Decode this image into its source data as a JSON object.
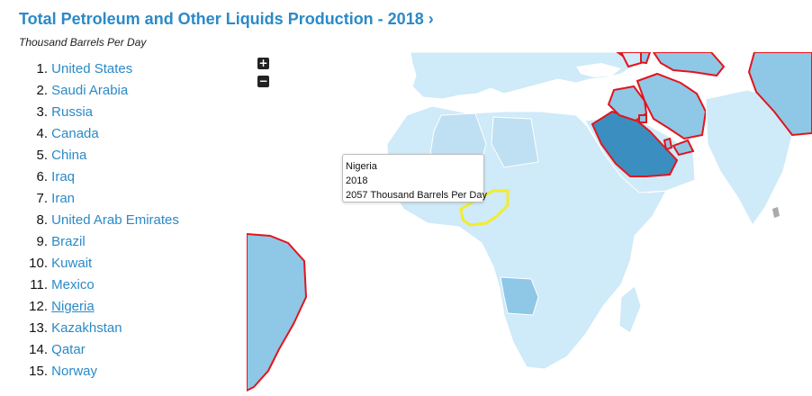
{
  "header": {
    "title": "Total Petroleum and Other Liquids Production - 2018 ›",
    "subtitle": "Thousand Barrels Per Day"
  },
  "ranking": [
    {
      "rank": "1.",
      "name": "United States"
    },
    {
      "rank": "2.",
      "name": "Saudi Arabia"
    },
    {
      "rank": "3.",
      "name": "Russia"
    },
    {
      "rank": "4.",
      "name": "Canada"
    },
    {
      "rank": "5.",
      "name": "China"
    },
    {
      "rank": "6.",
      "name": "Iraq"
    },
    {
      "rank": "7.",
      "name": "Iran"
    },
    {
      "rank": "8.",
      "name": "United Arab Emirates"
    },
    {
      "rank": "9.",
      "name": "Brazil"
    },
    {
      "rank": "10.",
      "name": "Kuwait"
    },
    {
      "rank": "11.",
      "name": "Mexico"
    },
    {
      "rank": "12.",
      "name": "Nigeria"
    },
    {
      "rank": "13.",
      "name": "Kazakhstan"
    },
    {
      "rank": "14.",
      "name": "Qatar"
    },
    {
      "rank": "15.",
      "name": "Norway"
    }
  ],
  "map_controls": {
    "zoom_in": "+",
    "zoom_out": "−"
  },
  "tooltip": {
    "country": "Nigeria",
    "year": "2018",
    "value_text": "2057 Thousand Barrels Per Day"
  },
  "colors": {
    "link": "#2a8ac7",
    "low_production": "#cfeaf8",
    "mid_production": "#8fc7e6",
    "high_production": "#3a8fc0",
    "top15_border": "#e3141c",
    "hover_border": "#f2ec2d",
    "ocean": "#ffffff"
  }
}
